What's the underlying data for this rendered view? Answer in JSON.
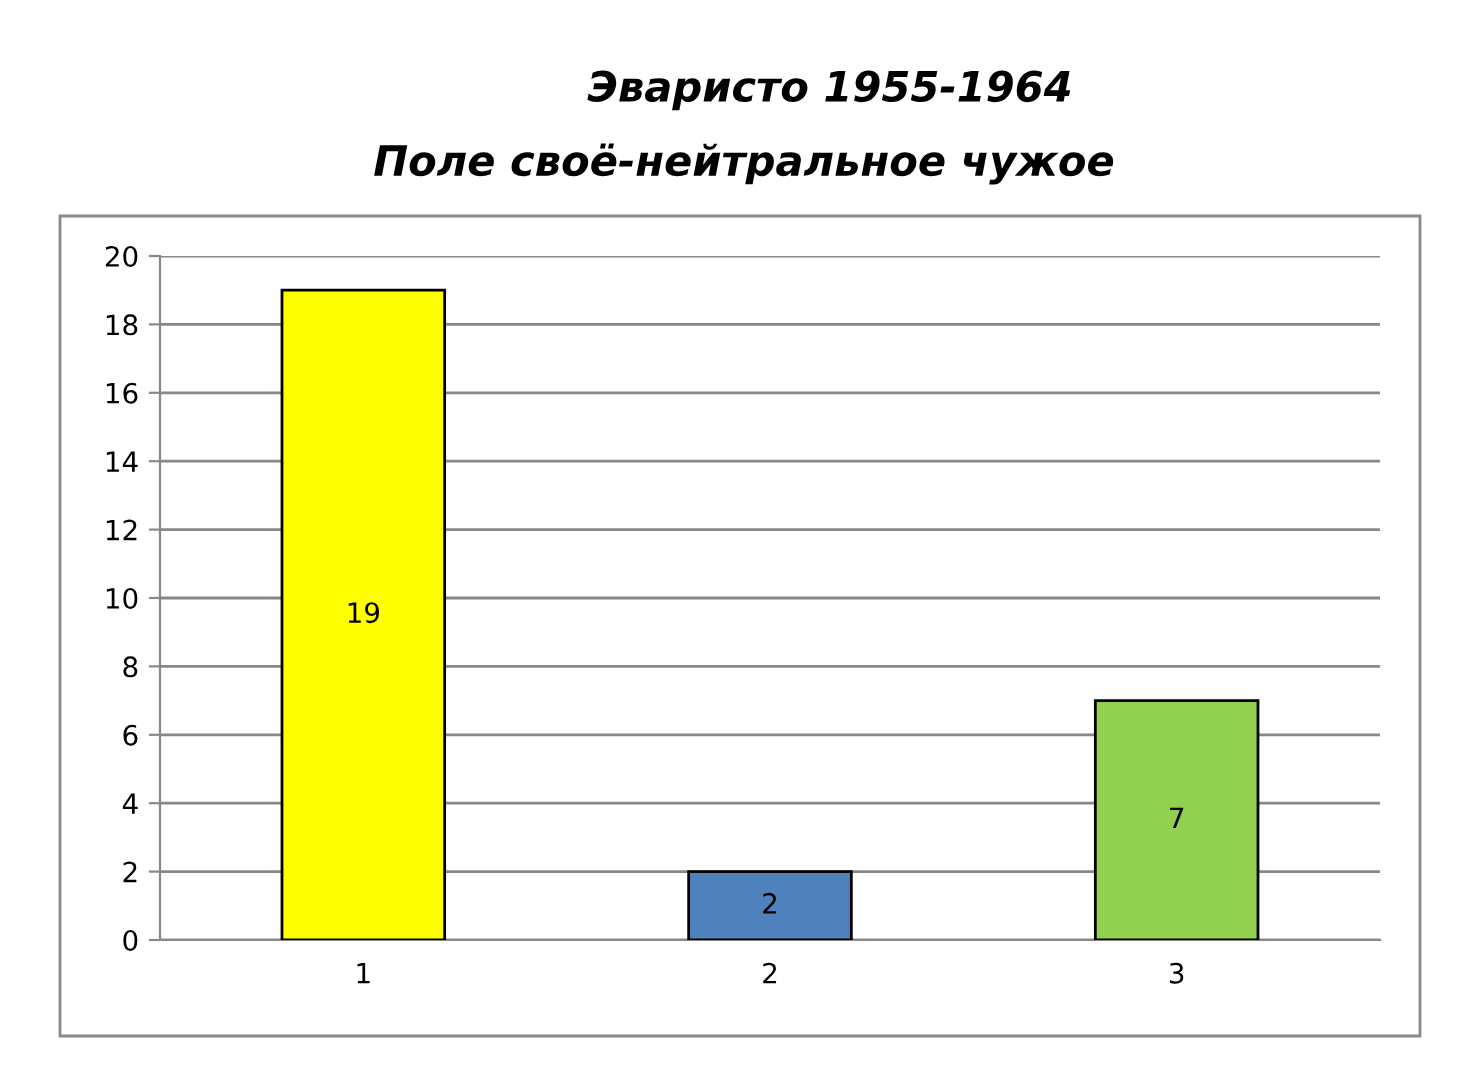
{
  "chart_data": {
    "type": "bar",
    "title": "Эваристо 1955-1964",
    "subtitle": "Поле своё-нейтральное чужое",
    "categories": [
      "1",
      "2",
      "3"
    ],
    "values": [
      19,
      2,
      7
    ],
    "colors": [
      "#ffff00",
      "#4f81bd",
      "#92d050"
    ],
    "ylim": [
      0,
      20
    ],
    "yticks": [
      0,
      2,
      4,
      6,
      8,
      10,
      12,
      14,
      16,
      18,
      20
    ],
    "grid": "y",
    "data_labels": true
  }
}
